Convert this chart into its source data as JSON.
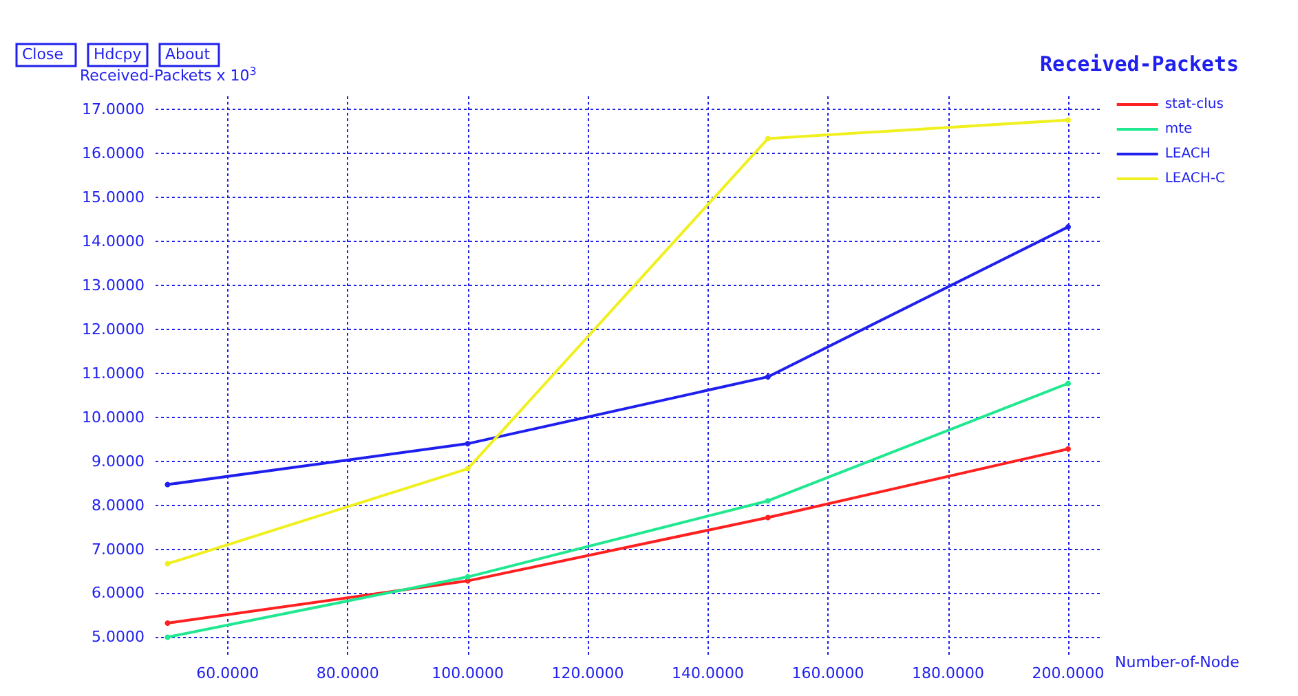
{
  "chart_data": {
    "type": "line",
    "title": "Received-Packets",
    "ylabel": "Received-Packets x 10$^{3}$",
    "xlabel": "Number-of-Node",
    "annotations": [
      "Close",
      "Hdcpy",
      "About"
    ],
    "x": [
      50,
      100,
      150,
      200
    ],
    "series": [
      {
        "name": "stat-clus",
        "color": "#ff2020",
        "values": [
          5.32,
          6.28,
          7.72,
          9.28
        ]
      },
      {
        "name": "mte",
        "color": "#20e890",
        "values": [
          5.0,
          6.37,
          8.1,
          10.77
        ]
      },
      {
        "name": "LEACH",
        "color": "#2020ee",
        "values": [
          8.47,
          9.4,
          10.92,
          14.33
        ]
      },
      {
        "name": "LEACH-C",
        "color": "#f0f020",
        "values": [
          6.67,
          8.83,
          16.34,
          16.76
        ]
      }
    ],
    "xlim": [
      48,
      205.5
    ],
    "ylim": [
      4.6,
      17.3
    ],
    "xticks": [
      {
        "value": 60,
        "label": "60.0000"
      },
      {
        "value": 80,
        "label": "80.0000"
      },
      {
        "value": 100,
        "label": "100.0000"
      },
      {
        "value": 120,
        "label": "120.0000"
      },
      {
        "value": 140,
        "label": "140.0000"
      },
      {
        "value": 160,
        "label": "160.0000"
      },
      {
        "value": 180,
        "label": "180.0000"
      },
      {
        "value": 200,
        "label": "200.0000"
      }
    ],
    "yticks": [
      {
        "value": 5,
        "label": "5.0000"
      },
      {
        "value": 6,
        "label": "6.0000"
      },
      {
        "value": 7,
        "label": "7.0000"
      },
      {
        "value": 8,
        "label": "8.0000"
      },
      {
        "value": 9,
        "label": "9.0000"
      },
      {
        "value": 10,
        "label": "10.0000"
      },
      {
        "value": 11,
        "label": "11.0000"
      },
      {
        "value": 12,
        "label": "12.0000"
      },
      {
        "value": 13,
        "label": "13.0000"
      },
      {
        "value": 14,
        "label": "14.0000"
      },
      {
        "value": 15,
        "label": "15.0000"
      },
      {
        "value": 16,
        "label": "16.0000"
      },
      {
        "value": 17,
        "label": "17.0000"
      }
    ],
    "grid": true,
    "legend": "top right",
    "marker": "circle",
    "line_style": "solid"
  }
}
